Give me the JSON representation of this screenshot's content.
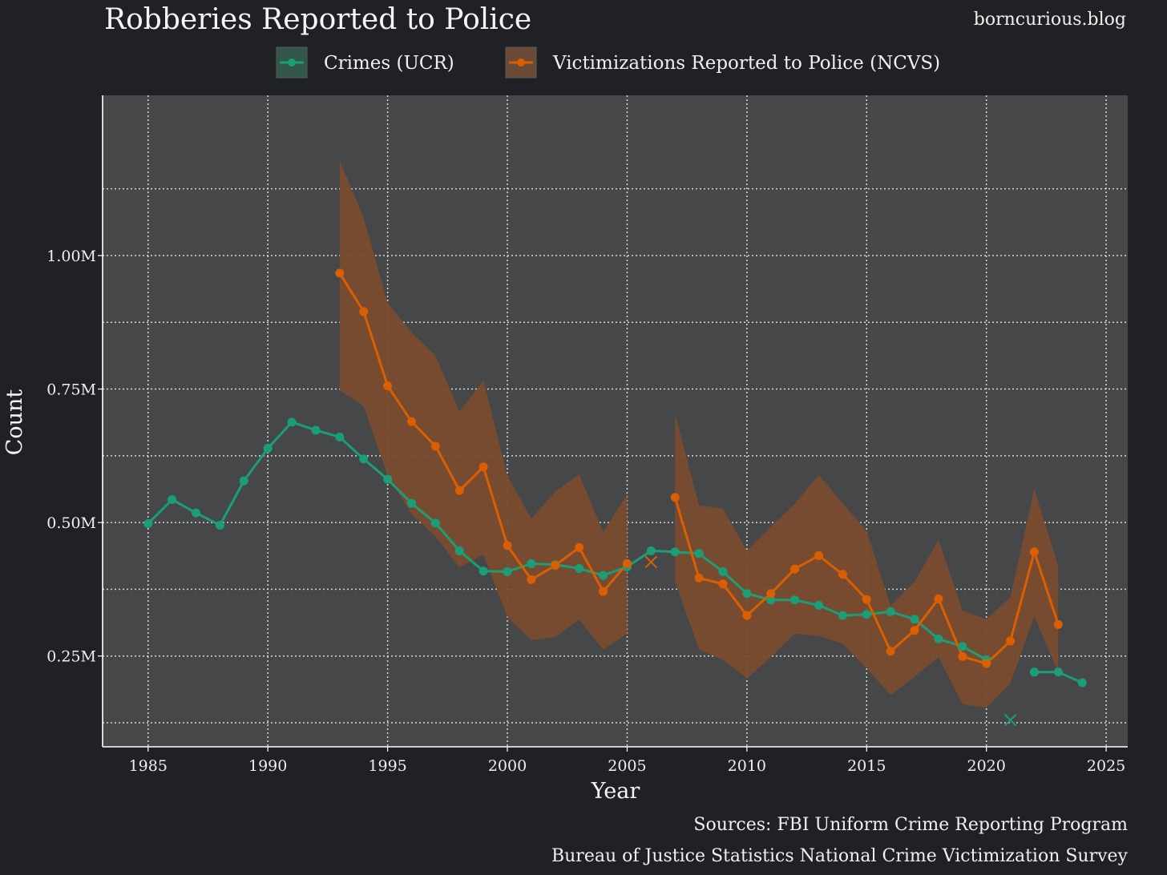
{
  "header": {
    "blog": "borncurious.blog"
  },
  "colors": {
    "background": "#202124",
    "panel": "#464749",
    "grid": "#e8e8e8",
    "ucr": "#1b9e77",
    "ncvs": "#d95f02",
    "ncvs_band": "#7a4c2e"
  },
  "chart_data": {
    "type": "line",
    "title": "Robberies Reported to Police",
    "xlabel": "Year",
    "ylabel": "Count",
    "xlim": [
      1983.1,
      2025.9
    ],
    "ylim": [
      0.08,
      1.3
    ],
    "xticks": [
      1985,
      1990,
      1995,
      2000,
      2005,
      2010,
      2015,
      2020,
      2025
    ],
    "xtick_labels": [
      "1985",
      "1990",
      "1995",
      "2000",
      "2005",
      "2010",
      "2015",
      "2020",
      "2025"
    ],
    "yticks": [
      0.25,
      0.5,
      0.75,
      1.0
    ],
    "ytick_labels": [
      "0.25M",
      "0.50M",
      "0.75M",
      "1.00M"
    ],
    "y_minor_grid": [
      0.125,
      0.375,
      0.625,
      0.875,
      1.125
    ],
    "grid": true,
    "legend_position": "top",
    "series": [
      {
        "name": "Crimes (UCR)",
        "segments": [
          {
            "x": [
              1985,
              1986,
              1987,
              1988,
              1989,
              1990,
              1991,
              1992,
              1993,
              1994,
              1995,
              1996,
              1997,
              1998,
              1999,
              2000,
              2001,
              2002,
              2003,
              2004,
              2005,
              2006,
              2007,
              2008,
              2009,
              2010,
              2011,
              2012,
              2013,
              2014,
              2015,
              2016,
              2017,
              2018,
              2019,
              2020
            ],
            "y": [
              0.498,
              0.543,
              0.518,
              0.495,
              0.578,
              0.639,
              0.688,
              0.673,
              0.66,
              0.619,
              0.581,
              0.536,
              0.499,
              0.447,
              0.409,
              0.408,
              0.423,
              0.421,
              0.414,
              0.401,
              0.417,
              0.447,
              0.445,
              0.442,
              0.408,
              0.367,
              0.355,
              0.355,
              0.345,
              0.326,
              0.328,
              0.333,
              0.319,
              0.282,
              0.268,
              0.243
            ]
          },
          {
            "x": [
              2022,
              2023,
              2024
            ],
            "y": [
              0.22,
              0.22,
              0.2
            ]
          }
        ],
        "isolated": [
          {
            "x": 2021,
            "y": 0.13,
            "marker": "x"
          }
        ]
      },
      {
        "name": "Victimizations Reported to Police (NCVS)",
        "segments": [
          {
            "x": [
              1993,
              1994,
              1995,
              1996,
              1997,
              1998,
              1999,
              2000,
              2001,
              2002,
              2003,
              2004,
              2005
            ],
            "y": [
              0.967,
              0.895,
              0.756,
              0.689,
              0.643,
              0.56,
              0.604,
              0.457,
              0.393,
              0.42,
              0.453,
              0.371,
              0.423
            ],
            "lower": [
              0.748,
              0.718,
              0.588,
              0.516,
              0.474,
              0.416,
              0.44,
              0.323,
              0.28,
              0.286,
              0.318,
              0.262,
              0.292
            ],
            "upper": [
              1.178,
              1.07,
              0.911,
              0.856,
              0.812,
              0.708,
              0.766,
              0.588,
              0.507,
              0.558,
              0.59,
              0.482,
              0.553
            ]
          },
          {
            "x": [
              2007,
              2008,
              2009,
              2010,
              2011,
              2012,
              2013,
              2014,
              2015,
              2016,
              2017,
              2018,
              2019,
              2020,
              2021,
              2022,
              2023
            ],
            "y": [
              0.547,
              0.396,
              0.385,
              0.326,
              0.367,
              0.413,
              0.438,
              0.403,
              0.356,
              0.259,
              0.298,
              0.357,
              0.249,
              0.236,
              0.278,
              0.445,
              0.309
            ],
            "lower": [
              0.39,
              0.262,
              0.243,
              0.208,
              0.248,
              0.292,
              0.288,
              0.273,
              0.227,
              0.177,
              0.211,
              0.248,
              0.16,
              0.153,
              0.199,
              0.325,
              0.219
            ],
            "upper": [
              0.704,
              0.532,
              0.526,
              0.447,
              0.492,
              0.535,
              0.589,
              0.536,
              0.484,
              0.344,
              0.389,
              0.467,
              0.335,
              0.319,
              0.36,
              0.563,
              0.418
            ]
          }
        ],
        "isolated": [
          {
            "x": 2006,
            "y": 0.426,
            "marker": "x"
          }
        ]
      }
    ]
  },
  "sources": {
    "line1": "Sources: FBI Uniform Crime Reporting Program",
    "line2": "Bureau of Justice Statistics National Crime Victimization Survey"
  }
}
